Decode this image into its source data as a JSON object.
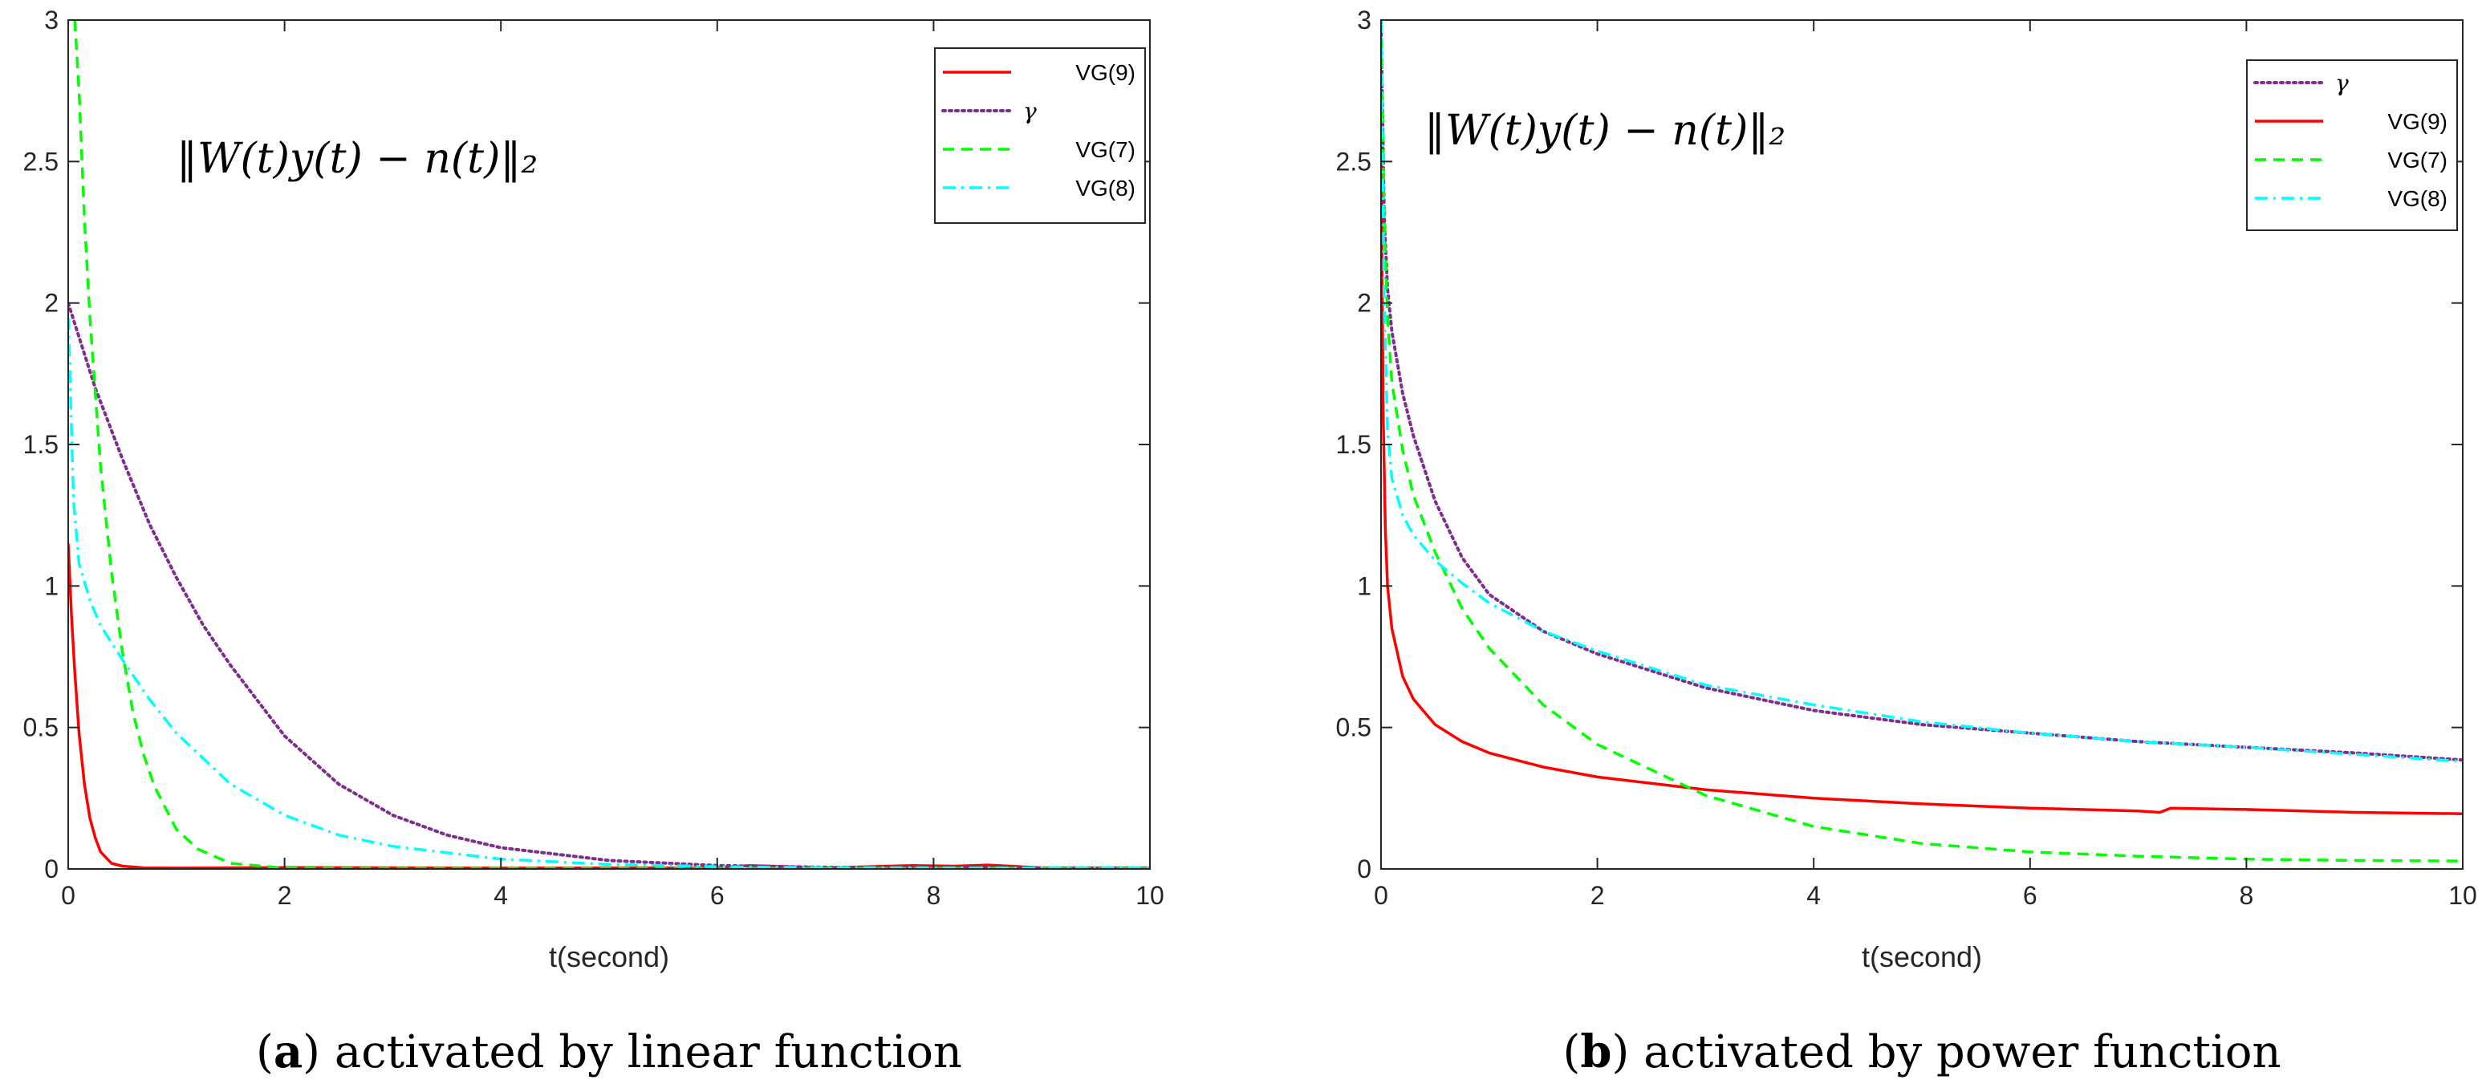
{
  "chart_data": [
    {
      "id": "a",
      "type": "line",
      "caption": {
        "letter": "a",
        "text": " activated by linear function"
      },
      "annotation": "‖W(t)y(t) − n(t)‖₂",
      "xlabel": "t(second)",
      "ylabel": "",
      "xlim": [
        0,
        10
      ],
      "ylim": [
        0,
        3
      ],
      "xticks": [
        "0",
        "2",
        "4",
        "6",
        "8",
        "10"
      ],
      "yticks": [
        "0",
        "0.5",
        "1",
        "1.5",
        "2",
        "2.5",
        "3"
      ],
      "grid": false,
      "legend_position": "top-right",
      "legend_order": [
        "VG(9)",
        "γ",
        "VG(7)",
        "VG(8)"
      ],
      "series": [
        {
          "name": "VG(9)",
          "style": "solid",
          "color": "#ff0000",
          "x": [
            0,
            0.03,
            0.06,
            0.1,
            0.15,
            0.2,
            0.25,
            0.3,
            0.4,
            0.5,
            0.7,
            1,
            2,
            4,
            6,
            6.3,
            6.5,
            7,
            7.8,
            8.2,
            8.5,
            9,
            10
          ],
          "y": [
            1.15,
            0.9,
            0.7,
            0.48,
            0.3,
            0.18,
            0.11,
            0.06,
            0.02,
            0.01,
            0.004,
            0.003,
            0.005,
            0.003,
            0.004,
            0.012,
            0.01,
            0.004,
            0.012,
            0.01,
            0.014,
            0.004,
            0.004
          ]
        },
        {
          "name": "γ",
          "style": "dotted",
          "color": "#7e2f8e",
          "x": [
            0,
            0.25,
            0.5,
            0.75,
            1,
            1.25,
            1.5,
            2,
            2.5,
            3,
            3.5,
            4,
            5,
            6,
            7,
            8,
            9,
            10
          ],
          "y": [
            2.0,
            1.7,
            1.45,
            1.22,
            1.03,
            0.86,
            0.72,
            0.47,
            0.3,
            0.19,
            0.12,
            0.075,
            0.03,
            0.012,
            0.006,
            0.004,
            0.003,
            0.003
          ]
        },
        {
          "name": "VG(7)",
          "style": "dashed",
          "color": "#00ff00",
          "x": [
            0.06,
            0.1,
            0.15,
            0.2,
            0.3,
            0.4,
            0.5,
            0.6,
            0.7,
            0.8,
            1,
            1.2,
            1.5,
            2,
            3,
            10
          ],
          "y": [
            3.0,
            2.75,
            2.3,
            1.95,
            1.42,
            1.05,
            0.77,
            0.55,
            0.4,
            0.29,
            0.14,
            0.07,
            0.02,
            0.003,
            0.002,
            0.002
          ]
        },
        {
          "name": "VG(8)",
          "style": "dashdot",
          "color": "#00ffff",
          "x": [
            0,
            0.05,
            0.1,
            0.2,
            0.3,
            0.5,
            0.75,
            1,
            1.5,
            2,
            2.5,
            3,
            4,
            5,
            6,
            7,
            8,
            9,
            10
          ],
          "y": [
            1.95,
            1.3,
            1.08,
            0.95,
            0.86,
            0.74,
            0.6,
            0.48,
            0.3,
            0.19,
            0.12,
            0.08,
            0.035,
            0.016,
            0.008,
            0.005,
            0.004,
            0.003,
            0.003
          ]
        }
      ]
    },
    {
      "id": "b",
      "type": "line",
      "caption": {
        "letter": "b",
        "text": " activated by power function"
      },
      "annotation": "‖W(t)y(t) − n(t)‖₂",
      "xlabel": "t(second)",
      "ylabel": "",
      "xlim": [
        0,
        10
      ],
      "ylim": [
        0,
        3
      ],
      "xticks": [
        "0",
        "2",
        "4",
        "6",
        "8",
        "10"
      ],
      "yticks": [
        "0",
        "0.5",
        "1",
        "1.5",
        "2",
        "2.5",
        "3"
      ],
      "grid": false,
      "legend_position": "top-right",
      "legend_order": [
        "γ",
        "VG(9)",
        "VG(7)",
        "VG(8)"
      ],
      "series": [
        {
          "name": "γ",
          "style": "dotted",
          "color": "#7e2f8e",
          "x": [
            0,
            0.03,
            0.06,
            0.1,
            0.2,
            0.3,
            0.5,
            0.75,
            1,
            1.5,
            2,
            3,
            4,
            5,
            6,
            7,
            8,
            9,
            10
          ],
          "y": [
            3.0,
            2.3,
            2.05,
            1.9,
            1.68,
            1.53,
            1.3,
            1.1,
            0.97,
            0.84,
            0.76,
            0.64,
            0.56,
            0.51,
            0.48,
            0.45,
            0.43,
            0.41,
            0.385
          ]
        },
        {
          "name": "VG(9)",
          "style": "solid",
          "color": "#ff0000",
          "x": [
            0,
            0.02,
            0.04,
            0.06,
            0.1,
            0.2,
            0.3,
            0.5,
            0.75,
            1,
            1.5,
            2,
            3,
            4,
            5,
            6,
            7,
            7.2,
            7.3,
            8,
            9,
            10
          ],
          "y": [
            2.6,
            1.6,
            1.2,
            1.0,
            0.85,
            0.68,
            0.6,
            0.51,
            0.45,
            0.41,
            0.36,
            0.325,
            0.28,
            0.25,
            0.23,
            0.215,
            0.205,
            0.2,
            0.215,
            0.21,
            0.2,
            0.195
          ]
        },
        {
          "name": "VG(7)",
          "style": "dashed",
          "color": "#00ff00",
          "x": [
            0,
            0.03,
            0.06,
            0.1,
            0.2,
            0.3,
            0.5,
            0.75,
            1,
            1.5,
            2,
            3,
            4,
            5,
            6,
            7,
            8,
            9,
            10
          ],
          "y": [
            3.0,
            2.3,
            1.95,
            1.72,
            1.48,
            1.32,
            1.12,
            0.92,
            0.78,
            0.58,
            0.44,
            0.26,
            0.15,
            0.09,
            0.06,
            0.045,
            0.035,
            0.03,
            0.028
          ]
        },
        {
          "name": "VG(8)",
          "style": "dashdot",
          "color": "#00ffff",
          "x": [
            0,
            0.03,
            0.06,
            0.1,
            0.2,
            0.3,
            0.5,
            0.75,
            1,
            1.5,
            2,
            3,
            4,
            5,
            6,
            7,
            8,
            9,
            10
          ],
          "y": [
            3.0,
            2.0,
            1.55,
            1.38,
            1.25,
            1.18,
            1.09,
            1.01,
            0.94,
            0.84,
            0.77,
            0.65,
            0.58,
            0.52,
            0.48,
            0.45,
            0.43,
            0.405,
            0.38
          ]
        }
      ]
    }
  ]
}
